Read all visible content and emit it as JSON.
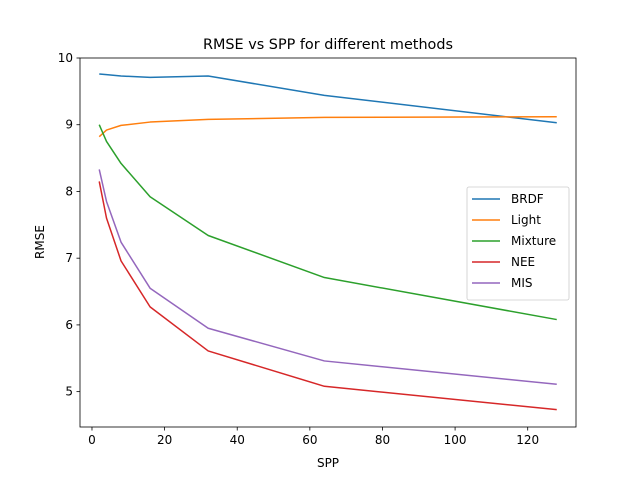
{
  "chart_data": {
    "type": "line",
    "title": "RMSE vs SPP for different methods",
    "xlabel": "SPP",
    "ylabel": "RMSE",
    "xlim": [
      -3.3,
      133.3
    ],
    "ylim": [
      4.47,
      10.0
    ],
    "xticks": [
      0,
      20,
      40,
      60,
      80,
      100,
      120
    ],
    "yticks": [
      5,
      6,
      7,
      8,
      9,
      10
    ],
    "grid": false,
    "legend": "center-right",
    "x": [
      2,
      4,
      8,
      16,
      32,
      64,
      128
    ],
    "series": [
      {
        "name": "BRDF",
        "color": "#1f77b4",
        "values": [
          9.76,
          9.75,
          9.73,
          9.71,
          9.73,
          9.44,
          9.03
        ]
      },
      {
        "name": "Light",
        "color": "#ff7f0e",
        "values": [
          8.82,
          8.92,
          8.99,
          9.04,
          9.08,
          9.11,
          9.12
        ]
      },
      {
        "name": "Mixture",
        "color": "#2ca02c",
        "values": [
          9.0,
          8.75,
          8.42,
          7.92,
          7.34,
          6.71,
          6.08
        ]
      },
      {
        "name": "NEE",
        "color": "#d62728",
        "values": [
          8.15,
          7.6,
          6.96,
          6.27,
          5.61,
          5.08,
          4.73
        ]
      },
      {
        "name": "MIS",
        "color": "#9467bd",
        "values": [
          8.33,
          7.85,
          7.24,
          6.55,
          5.95,
          5.46,
          5.11
        ]
      }
    ]
  }
}
